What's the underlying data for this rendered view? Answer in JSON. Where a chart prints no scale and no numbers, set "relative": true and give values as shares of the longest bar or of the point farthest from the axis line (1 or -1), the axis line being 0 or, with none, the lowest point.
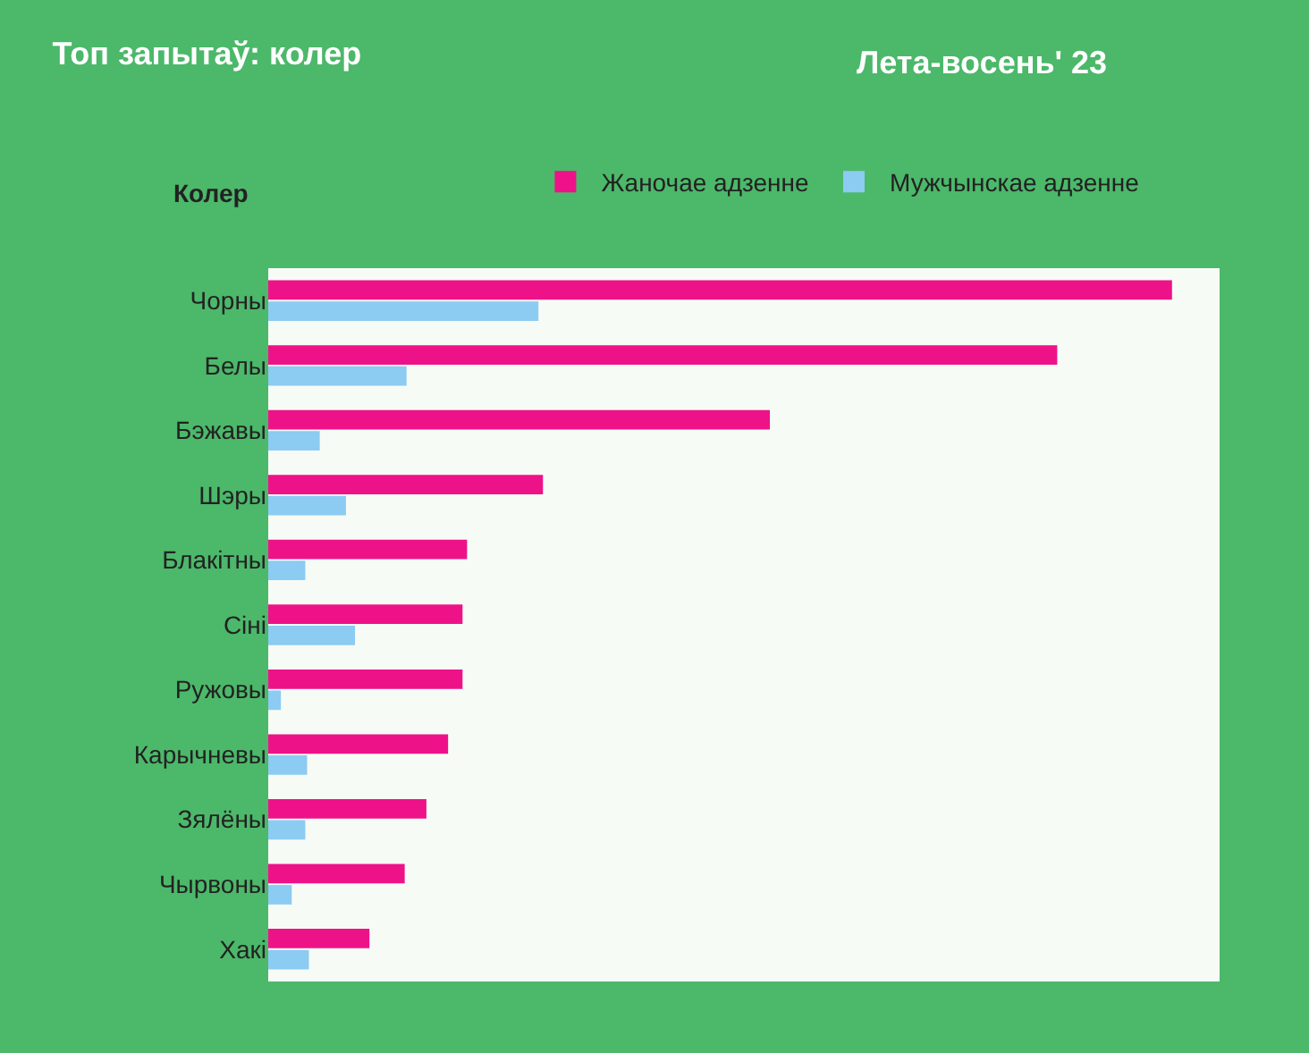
{
  "chart_data": {
    "type": "bar",
    "orientation": "horizontal",
    "relative": true,
    "title": "Топ запытаў: колер",
    "subtitle": "Лета-восень' 23",
    "ylabel": "Колер",
    "categories": [
      "Чорны",
      "Белы",
      "Бэжавы",
      "Шэры",
      "Блакітны",
      "Сіні",
      "Ружовы",
      "Карычневы",
      "Зялёны",
      "Чырвоны",
      "Хакі"
    ],
    "series": [
      {
        "name": "Жаночае адзенне",
        "color": "#ee1289",
        "values": [
          1.0,
          0.873,
          0.555,
          0.304,
          0.22,
          0.215,
          0.215,
          0.199,
          0.175,
          0.151,
          0.112
        ]
      },
      {
        "name": "Мужчынскае адзенне",
        "color": "#8ccbf2",
        "values": [
          0.299,
          0.153,
          0.057,
          0.086,
          0.041,
          0.096,
          0.014,
          0.043,
          0.041,
          0.026,
          0.045
        ]
      }
    ],
    "legend": "top"
  }
}
